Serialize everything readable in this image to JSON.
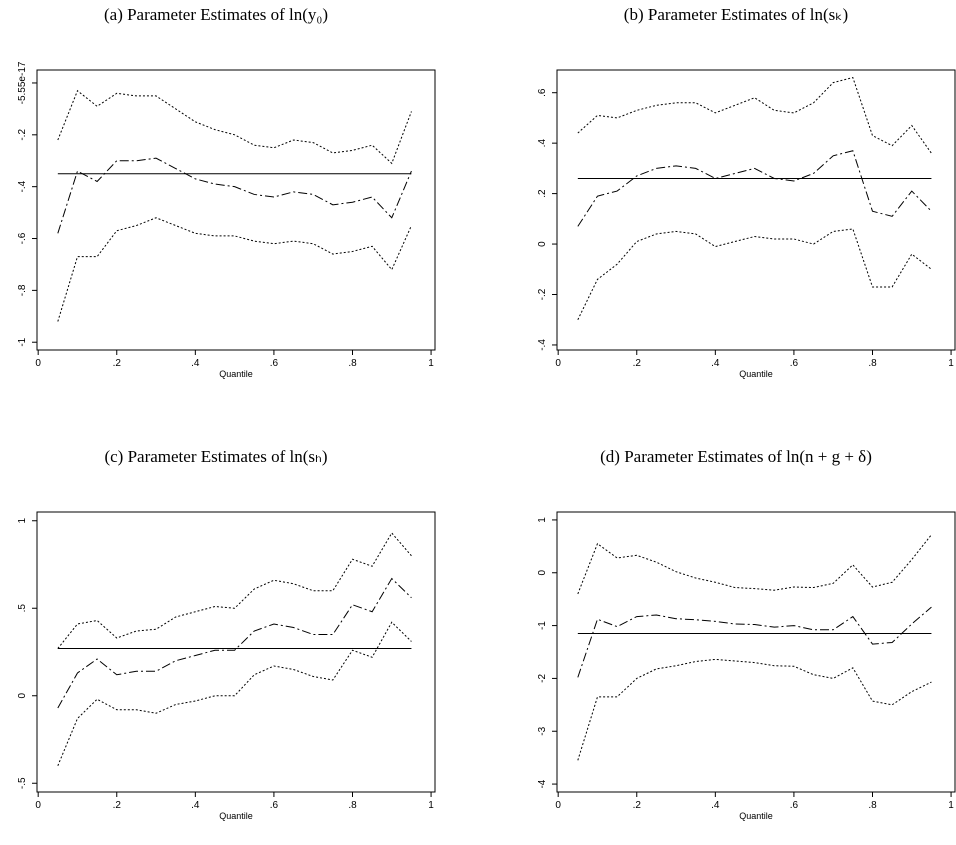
{
  "chart_data": [
    {
      "type": "line",
      "title": "(a)   Parameter Estimates of ln(y₀)",
      "xlabel": "Quantile",
      "x": [
        0.05,
        0.1,
        0.15,
        0.2,
        0.25,
        0.3,
        0.35,
        0.4,
        0.45,
        0.5,
        0.55,
        0.6,
        0.65,
        0.7,
        0.75,
        0.8,
        0.85,
        0.9,
        0.95
      ],
      "xlim": [
        -0.003,
        1.01
      ],
      "xticks": [
        0,
        {
          "value": 0.2,
          "label": ".2"
        },
        {
          "value": 0.4,
          "label": ".4"
        },
        {
          "value": 0.6,
          "label": ".6"
        },
        {
          "value": 0.8,
          "label": ".8"
        },
        1
      ],
      "ylim": [
        -1.03,
        0.05
      ],
      "yticks": [
        {
          "value": -5.55e-17,
          "label": "-5.55e-17"
        },
        {
          "value": -0.2,
          "label": "-.2"
        },
        {
          "value": -0.4,
          "label": "-.4"
        },
        {
          "value": -0.6,
          "label": "-.6"
        },
        {
          "value": -0.8,
          "label": "-.8"
        },
        -1
      ],
      "hline": -0.35,
      "series": [
        {
          "color": "#000000",
          "dash": "dotted",
          "values": [
            -0.22,
            -0.03,
            -0.09,
            -0.04,
            -0.05,
            -0.05,
            -0.1,
            -0.15,
            -0.18,
            -0.2,
            -0.24,
            -0.25,
            -0.22,
            -0.23,
            -0.27,
            -0.26,
            -0.24,
            -0.31,
            -0.11
          ]
        },
        {
          "color": "#000000",
          "dash": "dashdot",
          "values": [
            -0.58,
            -0.34,
            -0.38,
            -0.3,
            -0.3,
            -0.29,
            -0.33,
            -0.37,
            -0.39,
            -0.4,
            -0.43,
            -0.44,
            -0.42,
            -0.43,
            -0.47,
            -0.46,
            -0.44,
            -0.52,
            -0.34
          ]
        },
        {
          "color": "#000000",
          "dash": "dotted",
          "values": [
            -0.92,
            -0.67,
            -0.67,
            -0.57,
            -0.55,
            -0.52,
            -0.55,
            -0.58,
            -0.59,
            -0.59,
            -0.61,
            -0.62,
            -0.61,
            -0.62,
            -0.66,
            -0.65,
            -0.63,
            -0.72,
            -0.55
          ]
        }
      ]
    },
    {
      "type": "line",
      "title": "(b)   Parameter Estimates of ln(sₖ)",
      "xlabel": "Quantile",
      "x": [
        0.05,
        0.1,
        0.15,
        0.2,
        0.25,
        0.3,
        0.35,
        0.4,
        0.45,
        0.5,
        0.55,
        0.6,
        0.65,
        0.7,
        0.75,
        0.8,
        0.85,
        0.9,
        0.95
      ],
      "xlim": [
        -0.003,
        1.01
      ],
      "xticks": [
        0,
        {
          "value": 0.2,
          "label": ".2"
        },
        {
          "value": 0.4,
          "label": ".4"
        },
        {
          "value": 0.6,
          "label": ".6"
        },
        {
          "value": 0.8,
          "label": ".8"
        },
        1
      ],
      "ylim": [
        -0.42,
        0.69
      ],
      "yticks": [
        {
          "value": 0.6,
          "label": ".6"
        },
        {
          "value": 0.4,
          "label": ".4"
        },
        {
          "value": 0.2,
          "label": ".2"
        },
        0,
        {
          "value": -0.2,
          "label": "-.2"
        },
        {
          "value": -0.4,
          "label": "-.4"
        }
      ],
      "hline": 0.26,
      "series": [
        {
          "color": "#000000",
          "dash": "dotted",
          "values": [
            0.44,
            0.51,
            0.5,
            0.53,
            0.55,
            0.56,
            0.56,
            0.52,
            0.55,
            0.58,
            0.53,
            0.52,
            0.56,
            0.64,
            0.66,
            0.43,
            0.39,
            0.47,
            0.36
          ]
        },
        {
          "color": "#000000",
          "dash": "dashdot",
          "values": [
            0.07,
            0.19,
            0.21,
            0.27,
            0.3,
            0.31,
            0.3,
            0.26,
            0.28,
            0.3,
            0.26,
            0.25,
            0.28,
            0.35,
            0.37,
            0.13,
            0.11,
            0.21,
            0.13
          ]
        },
        {
          "color": "#000000",
          "dash": "dotted",
          "values": [
            -0.3,
            -0.14,
            -0.08,
            0.01,
            0.04,
            0.05,
            0.04,
            -0.01,
            0.01,
            0.03,
            0.02,
            0.02,
            0,
            0.05,
            0.06,
            -0.17,
            -0.17,
            -0.04,
            -0.1
          ]
        }
      ]
    },
    {
      "type": "line",
      "title": "(c)   Parameter Estimates of ln(sₕ)",
      "xlabel": "Quantile",
      "x": [
        0.05,
        0.1,
        0.15,
        0.2,
        0.25,
        0.3,
        0.35,
        0.4,
        0.45,
        0.5,
        0.55,
        0.6,
        0.65,
        0.7,
        0.75,
        0.8,
        0.85,
        0.9,
        0.95
      ],
      "xlim": [
        -0.003,
        1.01
      ],
      "xticks": [
        0,
        {
          "value": 0.2,
          "label": ".2"
        },
        {
          "value": 0.4,
          "label": ".4"
        },
        {
          "value": 0.6,
          "label": ".6"
        },
        {
          "value": 0.8,
          "label": ".8"
        },
        1
      ],
      "ylim": [
        -0.55,
        1.05
      ],
      "yticks": [
        1,
        {
          "value": 0.5,
          "label": ".5"
        },
        0,
        {
          "value": -0.5,
          "label": "-.5"
        }
      ],
      "hline": 0.27,
      "series": [
        {
          "color": "#000000",
          "dash": "dotted",
          "values": [
            0.27,
            0.41,
            0.43,
            0.33,
            0.37,
            0.38,
            0.45,
            0.48,
            0.51,
            0.5,
            0.61,
            0.66,
            0.64,
            0.6,
            0.6,
            0.78,
            0.74,
            0.93,
            0.8
          ]
        },
        {
          "color": "#000000",
          "dash": "dashdot",
          "values": [
            -0.07,
            0.13,
            0.21,
            0.12,
            0.14,
            0.14,
            0.2,
            0.23,
            0.26,
            0.26,
            0.37,
            0.41,
            0.39,
            0.35,
            0.35,
            0.52,
            0.48,
            0.67,
            0.56
          ]
        },
        {
          "color": "#000000",
          "dash": "dotted",
          "values": [
            -0.4,
            -0.13,
            -0.02,
            -0.08,
            -0.08,
            -0.1,
            -0.05,
            -0.03,
            0,
            0,
            0.12,
            0.17,
            0.15,
            0.11,
            0.09,
            0.26,
            0.22,
            0.42,
            0.31
          ]
        }
      ]
    },
    {
      "type": "line",
      "title": "(d)   Parameter Estimates of ln(n + g + δ)",
      "xlabel": "Quantile",
      "x": [
        0.05,
        0.1,
        0.15,
        0.2,
        0.25,
        0.3,
        0.35,
        0.4,
        0.45,
        0.5,
        0.55,
        0.6,
        0.65,
        0.7,
        0.75,
        0.8,
        0.85,
        0.9,
        0.95
      ],
      "xlim": [
        -0.003,
        1.01
      ],
      "xticks": [
        0,
        {
          "value": 0.2,
          "label": ".2"
        },
        {
          "value": 0.4,
          "label": ".4"
        },
        {
          "value": 0.6,
          "label": ".6"
        },
        {
          "value": 0.8,
          "label": ".8"
        },
        1
      ],
      "ylim": [
        -4.15,
        1.15
      ],
      "yticks": [
        1,
        0,
        -1,
        -2,
        -3,
        -4
      ],
      "hline": -1.15,
      "series": [
        {
          "color": "#000000",
          "dash": "dotted",
          "values": [
            -0.4,
            0.55,
            0.28,
            0.33,
            0.2,
            0.02,
            -0.1,
            -0.18,
            -0.28,
            -0.3,
            -0.33,
            -0.27,
            -0.28,
            -0.2,
            0.15,
            -0.27,
            -0.18,
            0.25,
            0.72
          ]
        },
        {
          "color": "#000000",
          "dash": "dashdot",
          "values": [
            -1.98,
            -0.88,
            -1.02,
            -0.83,
            -0.8,
            -0.87,
            -0.89,
            -0.92,
            -0.97,
            -0.98,
            -1.03,
            -1.0,
            -1.08,
            -1.08,
            -0.83,
            -1.35,
            -1.32,
            -0.97,
            -0.65
          ]
        },
        {
          "color": "#000000",
          "dash": "dotted",
          "values": [
            -3.55,
            -2.35,
            -2.35,
            -2.0,
            -1.82,
            -1.76,
            -1.68,
            -1.64,
            -1.67,
            -1.7,
            -1.76,
            -1.77,
            -1.93,
            -2.0,
            -1.8,
            -2.43,
            -2.5,
            -2.25,
            -2.07
          ]
        }
      ]
    }
  ]
}
